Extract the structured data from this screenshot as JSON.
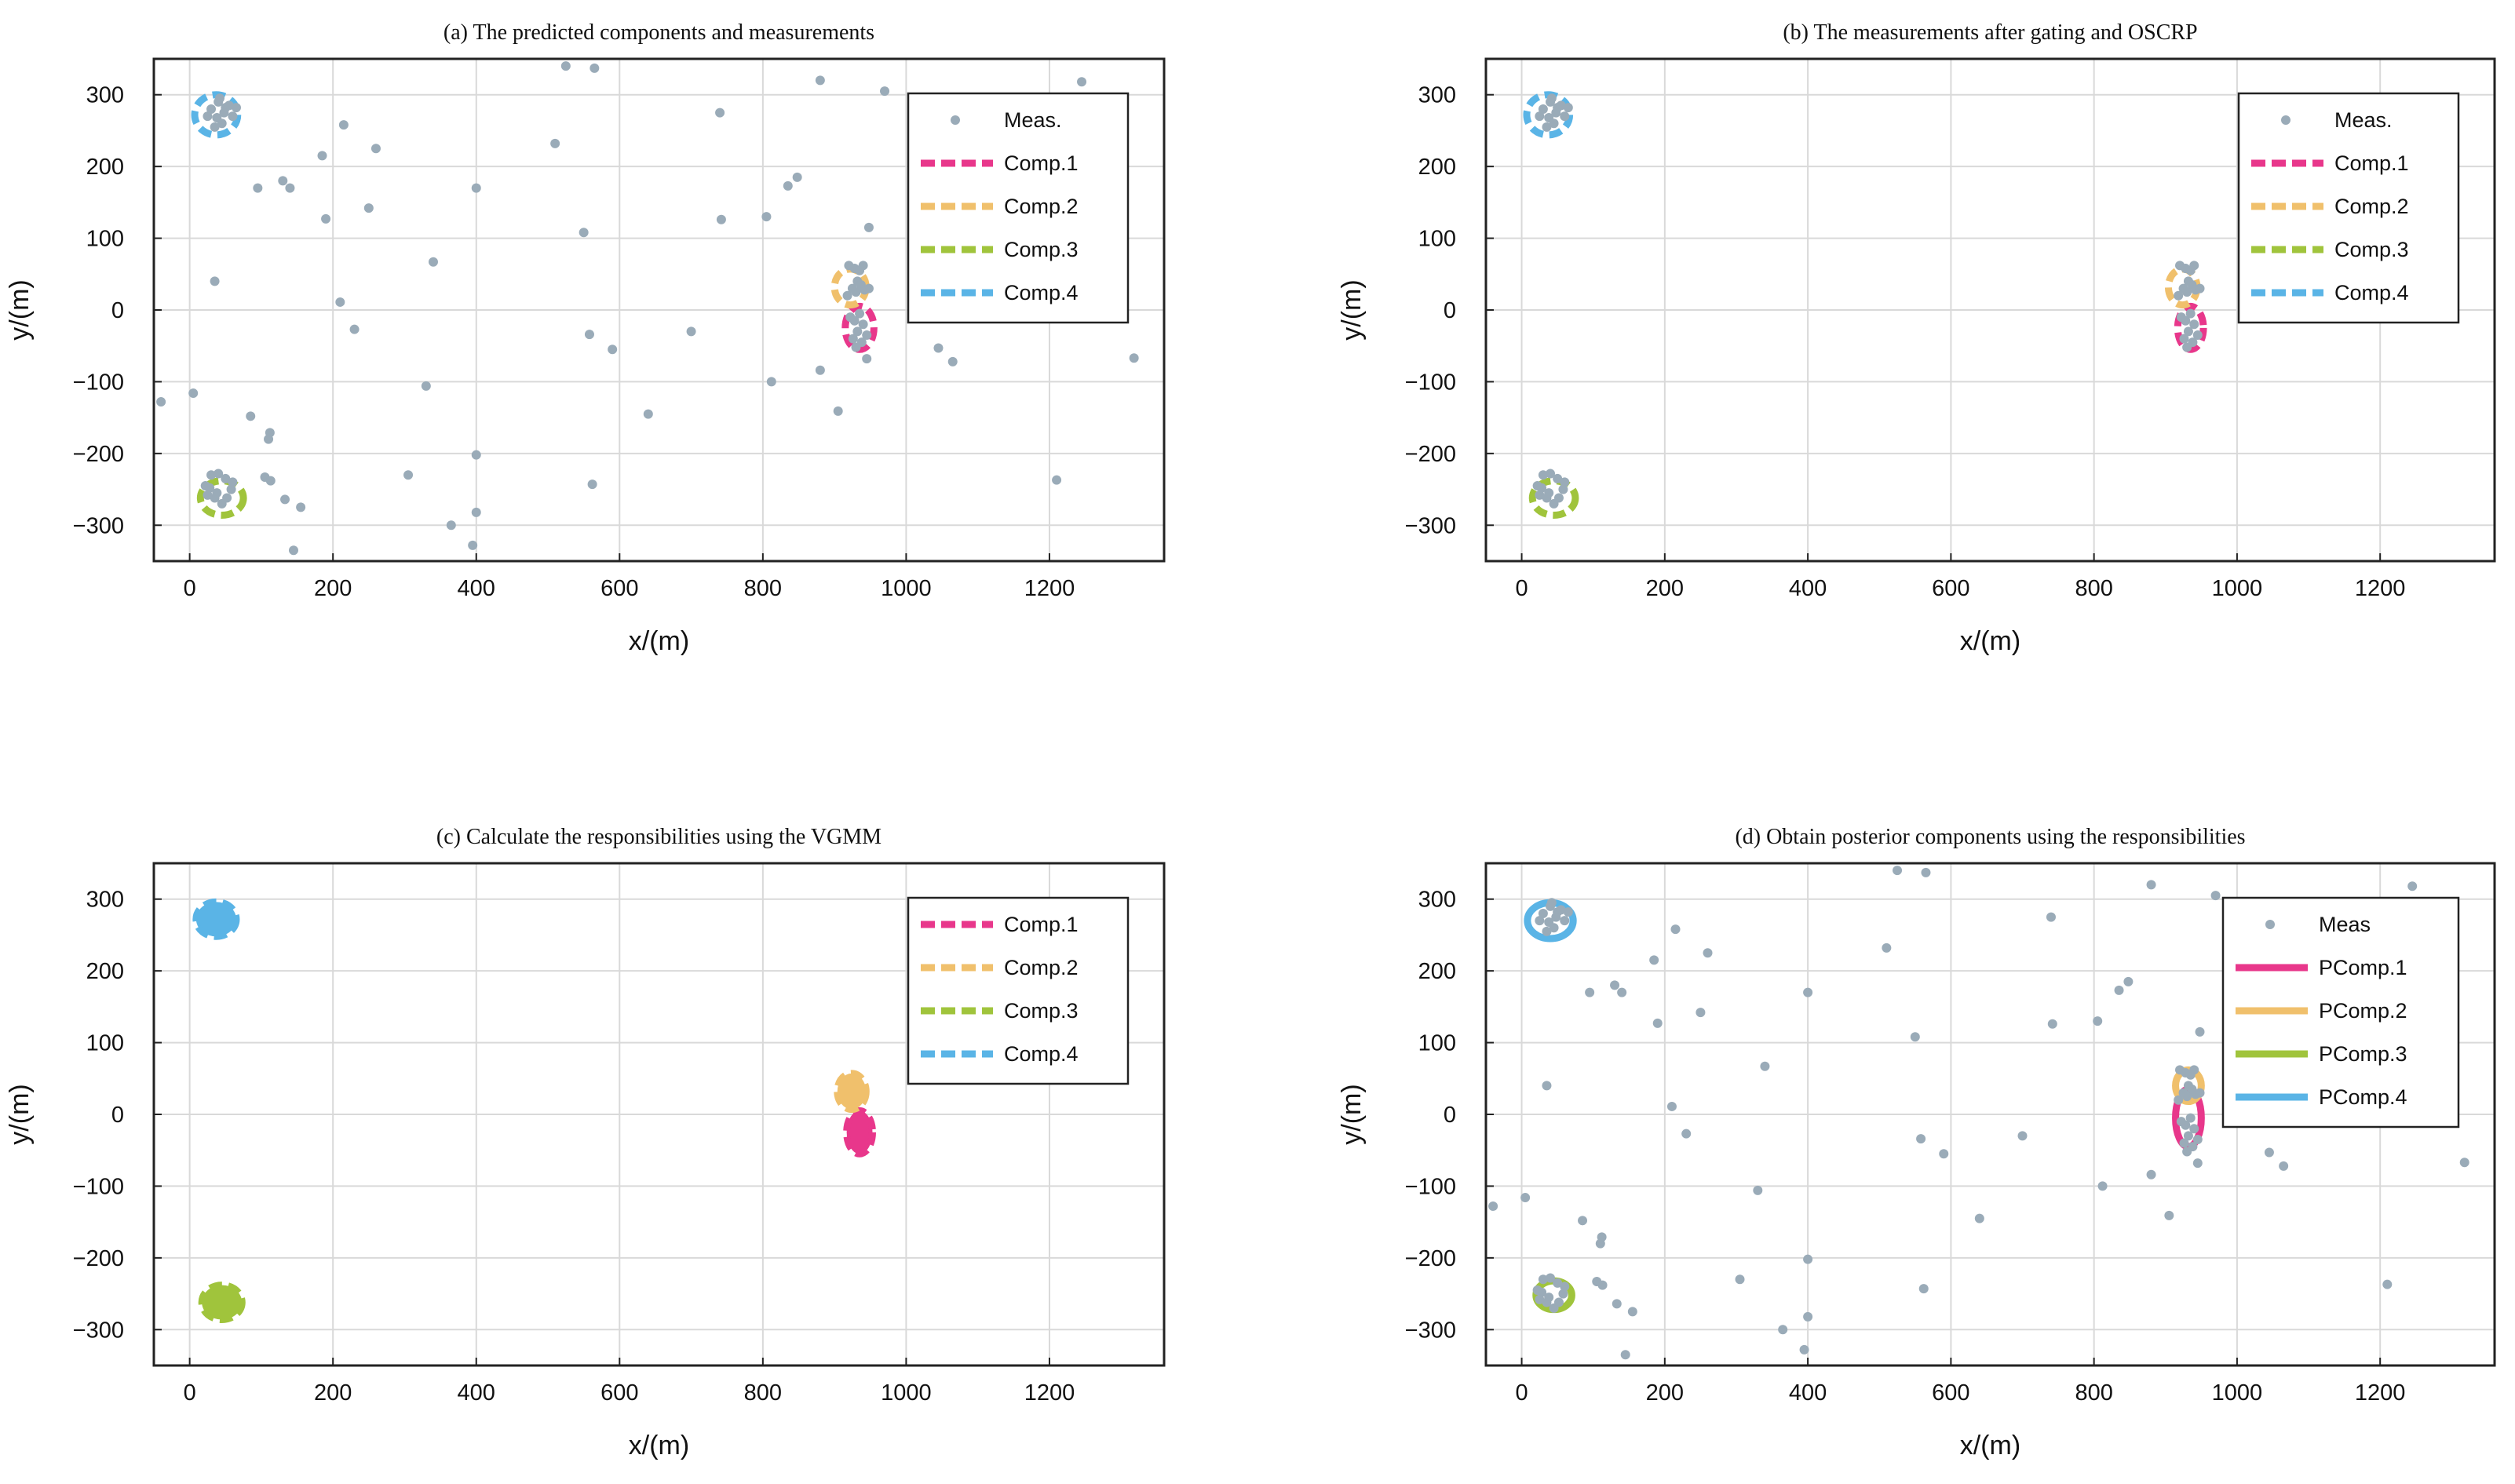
{
  "colors": {
    "meas": "#9aabb8",
    "comp1": "#e8378b",
    "comp2": "#f0c06c",
    "comp3": "#a0c43c",
    "comp4": "#5ab4e6",
    "grid": "#d9d9d9"
  },
  "chart_data": [
    {
      "type": "scatter",
      "title": "(a) The predicted components and measurements",
      "xlabel": "x/(m)",
      "ylabel": "y/(m)",
      "xlim": [
        -50,
        1360
      ],
      "ylim": [
        -350,
        350
      ],
      "xticks": [
        0,
        200,
        400,
        600,
        800,
        1000,
        1200
      ],
      "yticks": [
        300,
        200,
        100,
        0,
        -100,
        -200,
        -300
      ],
      "tick_labels_x": [
        "0",
        "200",
        "400",
        "600",
        "800",
        "1000",
        "1200"
      ],
      "tick_labels_y": [
        "300",
        "200",
        "100",
        "0",
        "−100",
        "−200",
        "−300"
      ],
      "grid": true,
      "legend_position": "top-right",
      "legend": [
        {
          "label": "Meas.",
          "kind": "marker",
          "color": "#9aabb8"
        },
        {
          "label": "Comp.1",
          "kind": "dashed",
          "color": "#e8378b"
        },
        {
          "label": "Comp.2",
          "kind": "dashed",
          "color": "#f0c06c"
        },
        {
          "label": "Comp.3",
          "kind": "dashed",
          "color": "#a0c43c"
        },
        {
          "label": "Comp.4",
          "kind": "dashed",
          "color": "#5ab4e6"
        }
      ],
      "show_clutter": true,
      "show_clusters": true,
      "components": [
        {
          "name": "Comp.1",
          "cx": 935,
          "cy": -25,
          "rx": 20,
          "ry": 30,
          "style": "dashed",
          "fill": false,
          "color": "#e8378b"
        },
        {
          "name": "Comp.2",
          "cx": 922,
          "cy": 32,
          "rx": 22,
          "ry": 25,
          "style": "dashed",
          "fill": false,
          "color": "#f0c06c"
        },
        {
          "name": "Comp.3",
          "cx": 45,
          "cy": -262,
          "rx": 30,
          "ry": 24,
          "style": "dashed",
          "fill": false,
          "color": "#a0c43c"
        },
        {
          "name": "Comp.4",
          "cx": 37,
          "cy": 272,
          "rx": 30,
          "ry": 28,
          "style": "dashed",
          "fill": false,
          "color": "#5ab4e6"
        }
      ]
    },
    {
      "type": "scatter",
      "title": "(b) The measurements after gating and OSCRP",
      "xlabel": "x/(m)",
      "ylabel": "y/(m)",
      "xlim": [
        -50,
        1360
      ],
      "ylim": [
        -350,
        350
      ],
      "xticks": [
        0,
        200,
        400,
        600,
        800,
        1000,
        1200
      ],
      "yticks": [
        300,
        200,
        100,
        0,
        -100,
        -200,
        -300
      ],
      "tick_labels_x": [
        "0",
        "200",
        "400",
        "600",
        "800",
        "1000",
        "1200"
      ],
      "tick_labels_y": [
        "300",
        "200",
        "100",
        "0",
        "−100",
        "−200",
        "−300"
      ],
      "grid": true,
      "legend_position": "top-right",
      "legend": [
        {
          "label": "Meas.",
          "kind": "marker",
          "color": "#9aabb8"
        },
        {
          "label": "Comp.1",
          "kind": "dashed",
          "color": "#e8378b"
        },
        {
          "label": "Comp.2",
          "kind": "dashed",
          "color": "#f0c06c"
        },
        {
          "label": "Comp.3",
          "kind": "dashed",
          "color": "#a0c43c"
        },
        {
          "label": "Comp.4",
          "kind": "dashed",
          "color": "#5ab4e6"
        }
      ],
      "show_clutter": false,
      "show_clusters": true,
      "components": [
        {
          "name": "Comp.1",
          "cx": 935,
          "cy": -25,
          "rx": 18,
          "ry": 30,
          "style": "dashed",
          "fill": false,
          "color": "#e8378b"
        },
        {
          "name": "Comp.2",
          "cx": 924,
          "cy": 32,
          "rx": 20,
          "ry": 25,
          "style": "dashed",
          "fill": false,
          "color": "#f0c06c"
        },
        {
          "name": "Comp.3",
          "cx": 45,
          "cy": -262,
          "rx": 30,
          "ry": 24,
          "style": "dashed",
          "fill": false,
          "color": "#a0c43c"
        },
        {
          "name": "Comp.4",
          "cx": 37,
          "cy": 272,
          "rx": 30,
          "ry": 28,
          "style": "dashed",
          "fill": false,
          "color": "#5ab4e6"
        }
      ]
    },
    {
      "type": "scatter",
      "title": "(c) Calculate the responsibilities using the VGMM",
      "xlabel": "x/(m)",
      "ylabel": "y/(m)",
      "xlim": [
        -50,
        1360
      ],
      "ylim": [
        -350,
        350
      ],
      "xticks": [
        0,
        200,
        400,
        600,
        800,
        1000,
        1200
      ],
      "yticks": [
        300,
        200,
        100,
        0,
        -100,
        -200,
        -300
      ],
      "tick_labels_x": [
        "0",
        "200",
        "400",
        "600",
        "800",
        "1000",
        "1200"
      ],
      "tick_labels_y": [
        "300",
        "200",
        "100",
        "0",
        "−100",
        "−200",
        "−300"
      ],
      "grid": true,
      "legend_position": "top-right",
      "legend": [
        {
          "label": "Comp.1",
          "kind": "dashed",
          "color": "#e8378b"
        },
        {
          "label": "Comp.2",
          "kind": "dashed",
          "color": "#f0c06c"
        },
        {
          "label": "Comp.3",
          "kind": "dashed",
          "color": "#a0c43c"
        },
        {
          "label": "Comp.4",
          "kind": "dashed",
          "color": "#5ab4e6"
        }
      ],
      "show_clutter": false,
      "show_clusters": false,
      "components": [
        {
          "name": "Comp.1",
          "cx": 935,
          "cy": -25,
          "rx": 18,
          "ry": 30,
          "style": "dashed",
          "fill": true,
          "color": "#e8378b"
        },
        {
          "name": "Comp.2",
          "cx": 924,
          "cy": 32,
          "rx": 20,
          "ry": 25,
          "style": "dashed",
          "fill": true,
          "color": "#f0c06c"
        },
        {
          "name": "Comp.3",
          "cx": 45,
          "cy": -262,
          "rx": 28,
          "ry": 24,
          "style": "dashed",
          "fill": true,
          "color": "#a0c43c"
        },
        {
          "name": "Comp.4",
          "cx": 37,
          "cy": 272,
          "rx": 28,
          "ry": 24,
          "style": "dashed",
          "fill": true,
          "color": "#5ab4e6"
        }
      ]
    },
    {
      "type": "scatter",
      "title": "(d) Obtain posterior components using the responsibilities",
      "xlabel": "x/(m)",
      "ylabel": "y/(m)",
      "xlim": [
        -50,
        1360
      ],
      "ylim": [
        -350,
        350
      ],
      "xticks": [
        0,
        200,
        400,
        600,
        800,
        1000,
        1200
      ],
      "yticks": [
        300,
        200,
        100,
        0,
        -100,
        -200,
        -300
      ],
      "tick_labels_x": [
        "0",
        "200",
        "400",
        "600",
        "800",
        "1000",
        "1200"
      ],
      "tick_labels_y": [
        "300",
        "200",
        "100",
        "0",
        "−100",
        "−200",
        "−300"
      ],
      "grid": true,
      "legend_position": "top-right",
      "legend": [
        {
          "label": "Meas",
          "kind": "marker",
          "color": "#9aabb8"
        },
        {
          "label": "PComp.1",
          "kind": "solid",
          "color": "#e8378b"
        },
        {
          "label": "PComp.2",
          "kind": "solid",
          "color": "#f0c06c"
        },
        {
          "label": "PComp.3",
          "kind": "solid",
          "color": "#a0c43c"
        },
        {
          "label": "PComp.4",
          "kind": "solid",
          "color": "#5ab4e6"
        }
      ],
      "show_clutter": true,
      "show_clusters": true,
      "components": [
        {
          "name": "PComp.1",
          "cx": 932,
          "cy": -5,
          "rx": 18,
          "ry": 40,
          "style": "solid",
          "fill": false,
          "color": "#e8378b"
        },
        {
          "name": "PComp.2",
          "cx": 932,
          "cy": 40,
          "rx": 18,
          "ry": 22,
          "style": "solid",
          "fill": false,
          "color": "#f0c06c"
        },
        {
          "name": "PComp.3",
          "cx": 45,
          "cy": -252,
          "rx": 25,
          "ry": 20,
          "style": "solid",
          "fill": false,
          "color": "#a0c43c"
        },
        {
          "name": "PComp.4",
          "cx": 40,
          "cy": 270,
          "rx": 32,
          "ry": 25,
          "style": "solid",
          "fill": false,
          "color": "#5ab4e6"
        }
      ]
    }
  ],
  "clutter_points": [
    [
      -40,
      -128
    ],
    [
      5,
      -116
    ],
    [
      35,
      40
    ],
    [
      85,
      -148
    ],
    [
      95,
      170
    ],
    [
      105,
      -233
    ],
    [
      110,
      -180
    ],
    [
      112,
      -171
    ],
    [
      113,
      -238
    ],
    [
      130,
      180
    ],
    [
      133,
      -264
    ],
    [
      140,
      170
    ],
    [
      145,
      -335
    ],
    [
      155,
      -275
    ],
    [
      185,
      215
    ],
    [
      190,
      127
    ],
    [
      210,
      11
    ],
    [
      215,
      258
    ],
    [
      230,
      -27
    ],
    [
      250,
      142
    ],
    [
      260,
      225
    ],
    [
      305,
      -230
    ],
    [
      330,
      -106
    ],
    [
      340,
      67
    ],
    [
      365,
      -300
    ],
    [
      395,
      -328
    ],
    [
      400,
      -202
    ],
    [
      400,
      -282
    ],
    [
      400,
      170
    ],
    [
      510,
      232
    ],
    [
      525,
      340
    ],
    [
      550,
      108
    ],
    [
      558,
      -34
    ],
    [
      562,
      -243
    ],
    [
      565,
      337
    ],
    [
      590,
      -55
    ],
    [
      640,
      -145
    ],
    [
      700,
      -30
    ],
    [
      740,
      275
    ],
    [
      742,
      126
    ],
    [
      805,
      130
    ],
    [
      812,
      -100
    ],
    [
      835,
      173
    ],
    [
      848,
      185
    ],
    [
      880,
      -84
    ],
    [
      880,
      320
    ],
    [
      905,
      -141
    ],
    [
      945,
      -68
    ],
    [
      948,
      115
    ],
    [
      970,
      305
    ],
    [
      1045,
      -53
    ],
    [
      1065,
      -72
    ],
    [
      1210,
      -237
    ],
    [
      1245,
      318
    ],
    [
      1318,
      -67
    ]
  ],
  "cluster_points": [
    [
      920,
      62
    ],
    [
      928,
      58
    ],
    [
      935,
      55
    ],
    [
      940,
      62
    ],
    [
      932,
      40
    ],
    [
      925,
      30
    ],
    [
      937,
      35
    ],
    [
      930,
      25
    ],
    [
      942,
      28
    ],
    [
      918,
      20
    ],
    [
      935,
      -5
    ],
    [
      928,
      -15
    ],
    [
      940,
      -20
    ],
    [
      932,
      -30
    ],
    [
      926,
      -40
    ],
    [
      938,
      -45
    ],
    [
      930,
      -52
    ],
    [
      945,
      -35
    ],
    [
      922,
      -10
    ],
    [
      948,
      30
    ],
    [
      30,
      -230
    ],
    [
      40,
      -228
    ],
    [
      50,
      -235
    ],
    [
      28,
      -248
    ],
    [
      38,
      -255
    ],
    [
      52,
      -262
    ],
    [
      45,
      -270
    ],
    [
      35,
      -262
    ],
    [
      25,
      -258
    ],
    [
      58,
      -250
    ],
    [
      60,
      -240
    ],
    [
      22,
      -245
    ],
    [
      30,
      280
    ],
    [
      40,
      290
    ],
    [
      50,
      282
    ],
    [
      38,
      268
    ],
    [
      45,
      260
    ],
    [
      55,
      285
    ],
    [
      65,
      282
    ],
    [
      25,
      270
    ],
    [
      35,
      255
    ],
    [
      48,
      275
    ],
    [
      60,
      270
    ],
    [
      42,
      295
    ]
  ]
}
